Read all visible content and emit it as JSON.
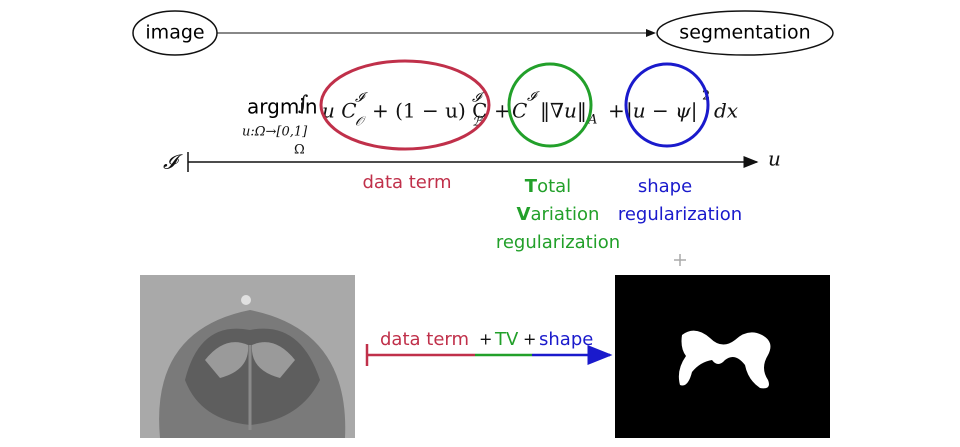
{
  "top": {
    "source": "image",
    "target": "segmentation"
  },
  "formula": {
    "argmin": "argmin",
    "argmin_sub": "u:Ω→[0,1]",
    "integral": "∫",
    "domain": "Ω",
    "term1": "u C",
    "term1_sup": "𝓘",
    "term1_sub": "𝒪",
    "term2": "+ (1 − u) C",
    "term2_sup": "𝓘",
    "term2_sub": "ℬ",
    "plus1": "+",
    "term3": "C",
    "term3_sup": "𝓘",
    "term3_norm": "‖∇u‖",
    "term3_sub": "A",
    "plus2": "+",
    "term4": "|u − ψ|",
    "term4_sup": "2",
    "dx": "dx"
  },
  "axis": {
    "start": "𝓘",
    "end": "u"
  },
  "labels": {
    "data_term": "data term",
    "tv": [
      {
        "initial": "T",
        "rest": "otal"
      },
      {
        "initial": "V",
        "rest": "ariation"
      },
      {
        "initial": "",
        "rest": "regularization"
      }
    ],
    "shape": [
      "shape",
      "regularization"
    ]
  },
  "pipeline": {
    "data_term": "data term",
    "plus1": "+",
    "tv": "TV",
    "plus2": "+",
    "shape": "shape"
  }
}
